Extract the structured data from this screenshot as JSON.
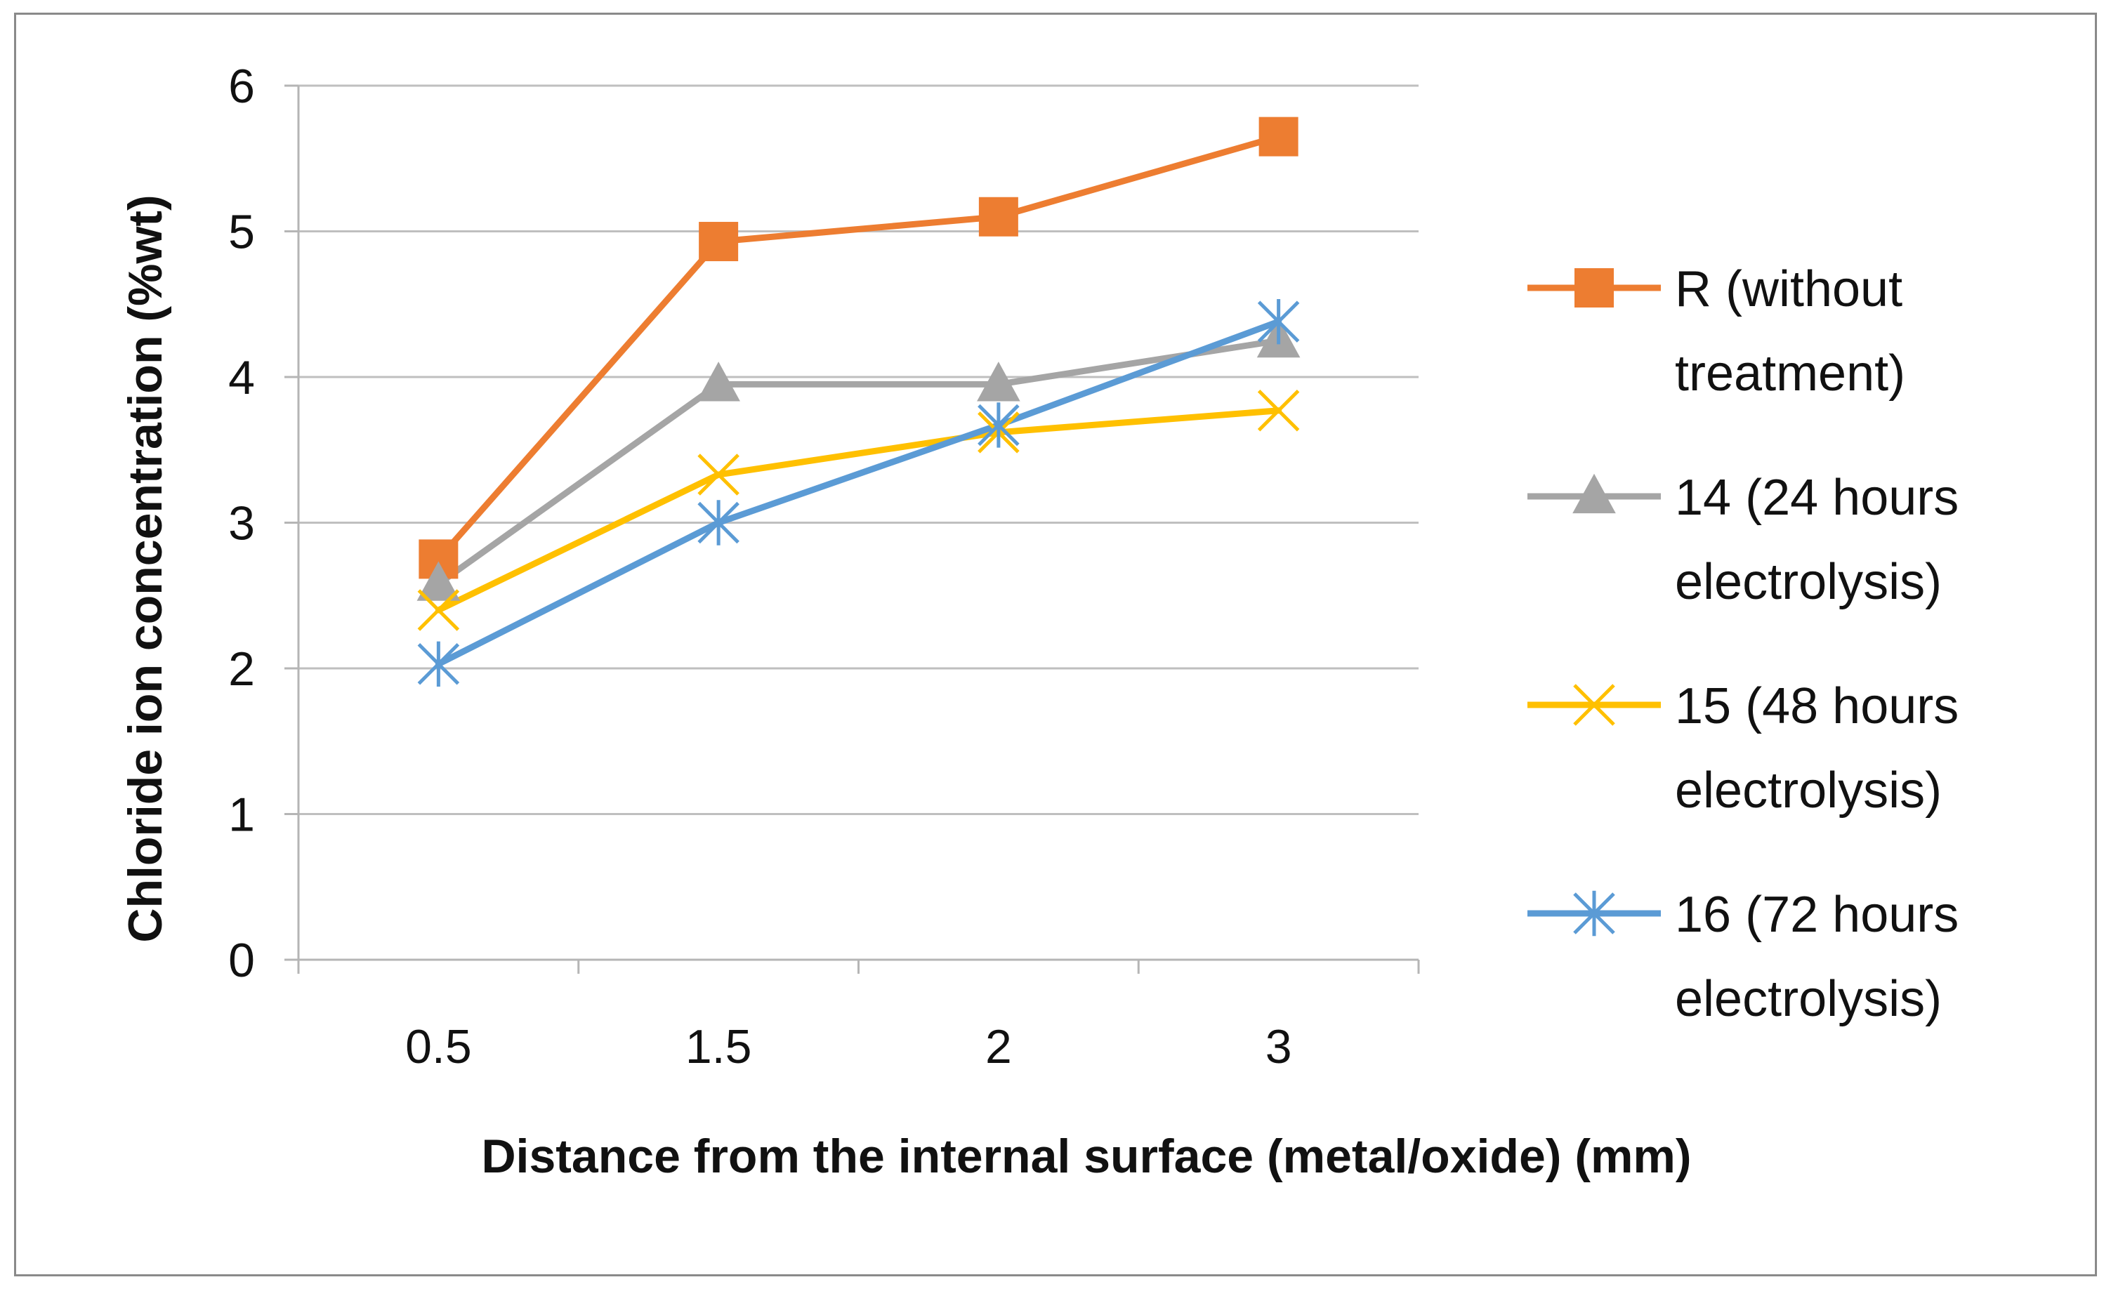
{
  "chart_data": {
    "type": "line",
    "title": "",
    "xlabel": "Distance from the internal surface (metal/oxide) (mm)",
    "ylabel": "Chloride ion concentration (%wt)",
    "categories": [
      "0.5",
      "1.5",
      "2",
      "3"
    ],
    "ylim": [
      0,
      6
    ],
    "yticks": [
      "0",
      "1",
      "2",
      "3",
      "4",
      "5",
      "6"
    ],
    "grid": true,
    "legend_position": "right",
    "series": [
      {
        "name": "R (without treatment)",
        "legend_lines": [
          "R (without",
          "treatment)"
        ],
        "values": [
          2.75,
          4.93,
          5.1,
          5.65
        ],
        "color": "#ED7D31",
        "marker": "square"
      },
      {
        "name": "14 (24 hours electrolysis)",
        "legend_lines": [
          "14 (24 hours",
          "electrolysis)"
        ],
        "values": [
          2.58,
          3.95,
          3.95,
          4.25
        ],
        "color": "#A5A5A5",
        "marker": "triangle"
      },
      {
        "name": "15 (48 hours electrolysis)",
        "legend_lines": [
          "15 (48 hours",
          "electrolysis)"
        ],
        "values": [
          2.4,
          3.33,
          3.62,
          3.77
        ],
        "color": "#FFC000",
        "marker": "x"
      },
      {
        "name": "16 (72 hours electrolysis)",
        "legend_lines": [
          "16 (72 hours",
          "electrolysis)"
        ],
        "values": [
          2.03,
          3.0,
          3.67,
          4.38
        ],
        "color": "#5B9BD5",
        "marker": "star"
      }
    ]
  }
}
